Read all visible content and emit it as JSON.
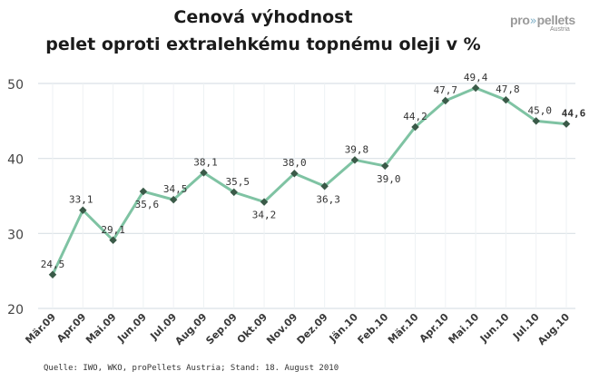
{
  "title_line1": "Cenová výhodnost",
  "title_line2": "pelet oproti extralehkému topnému oleji v %",
  "logo": {
    "brand_left": "pro",
    "brand_right": "pellets",
    "sub": "Austria"
  },
  "source": "Quelle: IWO, WKO, proPellets Austria; Stand: 18. August 2010",
  "colors": {
    "line": "#7fc3a3",
    "marker": "#3a5a48",
    "grid": "#d9e1e6",
    "axis_text": "#444444"
  },
  "chart_data": {
    "type": "line",
    "title": "Cenová výhodnost pelet oproti extralehkému topnému oleji v %",
    "categories": [
      "Mär.09",
      "Apr.09",
      "Mai.09",
      "Jun.09",
      "Jul.09",
      "Aug.09",
      "Sep.09",
      "Okt.09",
      "Nov.09",
      "Dez.09",
      "Jän.10",
      "Feb.10",
      "Mär.10",
      "Apr.10",
      "Mai.10",
      "Jun.10",
      "Jul.10",
      "Aug.10"
    ],
    "values": [
      24.5,
      33.1,
      29.1,
      35.6,
      34.5,
      38.1,
      35.5,
      34.2,
      38.0,
      36.3,
      39.8,
      39.0,
      44.2,
      47.7,
      49.4,
      47.8,
      45.0,
      44.6
    ],
    "value_labels": [
      "24,5",
      "33,1",
      "29,1",
      "35,6",
      "34,5",
      "38,1",
      "35,5",
      "34,2",
      "38,0",
      "36,3",
      "39,8",
      "39,0",
      "44,2",
      "47,7",
      "49,4",
      "47,8",
      "45,0",
      "44,6"
    ],
    "ylim": [
      20,
      50
    ],
    "yticks": [
      20,
      30,
      40,
      50
    ],
    "ytick_labels": [
      "20",
      "30",
      "40",
      "50"
    ],
    "grid": true,
    "xlabel": "",
    "ylabel": ""
  }
}
